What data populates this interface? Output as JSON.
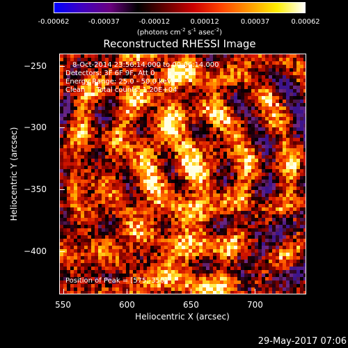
{
  "colorbar": {
    "ticks": [
      "-0.00062",
      "-0.00037",
      "-0.00012",
      "0.00012",
      "0.00037",
      "0.00062"
    ],
    "units": "(photons cm",
    "units_sup1": "-2",
    "units_mid": " s",
    "units_sup2": "-1",
    "units_end": " asec",
    "units_sup3": "-2",
    "units_close": ")",
    "colors": [
      "#0000ff",
      "#4000c0",
      "#6a0080",
      "#000000",
      "#660000",
      "#cc0000",
      "#ff4400",
      "#ff9900",
      "#ffee00",
      "#ffffff"
    ]
  },
  "info": {
    "time_range": "8-Oct-2014 23:56:14.000 to 00:06:14.000",
    "detectors": "Detectors: 3F 6F 9F, Att 0",
    "energy_range": "Energy Range: 25.0 - 50.0 keV",
    "clean_total": "Clean     Total counts: 1.20E+04",
    "peak": "Position of Peak = [575,-350]"
  },
  "footer_date": "29-May-2017 07:06",
  "chart_data": {
    "type": "heatmap",
    "title": "Reconstructed RHESSI Image",
    "xlabel": "Heliocentric X (arcsec)",
    "ylabel": "Heliocentric Y (arcsec)",
    "xlim": [
      547,
      740
    ],
    "ylim": [
      -435,
      -240
    ],
    "x_ticks": [
      550,
      600,
      650,
      700
    ],
    "y_ticks": [
      -250,
      -300,
      -350,
      -400
    ],
    "x_tick_labels": [
      "550",
      "600",
      "650",
      "700"
    ],
    "y_tick_labels": [
      "−250",
      "−300",
      "−350",
      "−400"
    ],
    "value_range": [
      -0.00062,
      0.00062
    ],
    "peak": [
      575,
      -350
    ]
  }
}
